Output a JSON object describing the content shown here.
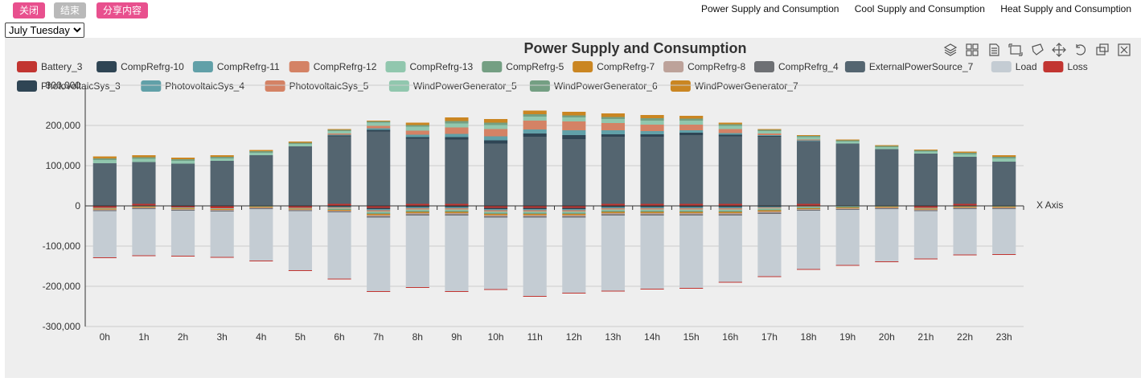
{
  "header": {
    "buttons": [
      {
        "label": "关闭"
      },
      {
        "label": "结束"
      },
      {
        "label": "分享内容"
      }
    ],
    "tabs": [
      "Power Supply and Consumption",
      "Cool Supply and Consumption",
      "Heat Supply and Consumption"
    ]
  },
  "selector": {
    "selected": "July Tuesday"
  },
  "toolbox": [
    "stack-icon",
    "grid-icon",
    "document-icon",
    "box-select-icon",
    "lasso-icon",
    "zoom-icon",
    "restore-icon",
    "save-image-icon",
    "clear-icon"
  ],
  "chart_data": {
    "type": "bar",
    "title": "Power Supply and Consumption",
    "xlabel": "X Axis",
    "ylabel": "",
    "ylim": [
      -300000,
      300000
    ],
    "yticks": [
      -300000,
      -200000,
      -100000,
      0,
      100000,
      200000,
      300000
    ],
    "ytick_labels": [
      "-300,000",
      "-200,000",
      "-100,000",
      "0",
      "100,000",
      "200,000",
      "300,000"
    ],
    "categories": [
      "0h",
      "1h",
      "2h",
      "3h",
      "4h",
      "5h",
      "6h",
      "7h",
      "8h",
      "9h",
      "10h",
      "11h",
      "12h",
      "13h",
      "14h",
      "15h",
      "16h",
      "17h",
      "18h",
      "19h",
      "20h",
      "21h",
      "22h",
      "23h"
    ],
    "legend_position": "top",
    "series": [
      {
        "name": "Battery_3",
        "color": "#c23531",
        "values": [
          -5000,
          5000,
          -4000,
          -6000,
          0,
          -5000,
          5000,
          -5000,
          5000,
          5000,
          -5000,
          -5000,
          -5000,
          5000,
          5000,
          5000,
          5000,
          0,
          5000,
          0,
          0,
          -5000,
          5000,
          0
        ]
      },
      {
        "name": "CompRefrg-10",
        "color": "#2f4554",
        "values": [
          0,
          0,
          0,
          0,
          0,
          0,
          -2000,
          -3000,
          -3000,
          -3000,
          -3000,
          -3000,
          -3000,
          -3000,
          -3000,
          -3000,
          -3000,
          -2000,
          0,
          0,
          0,
          0,
          0,
          0
        ]
      },
      {
        "name": "CompRefrg-11",
        "color": "#61a0a8",
        "values": [
          0,
          0,
          0,
          0,
          0,
          0,
          -2000,
          -3000,
          -3000,
          -3000,
          -3000,
          -3000,
          -3000,
          -3000,
          -3000,
          -3000,
          -3000,
          -2000,
          0,
          0,
          0,
          0,
          0,
          0
        ]
      },
      {
        "name": "CompRefrg-12",
        "color": "#d48265",
        "values": [
          0,
          0,
          0,
          0,
          0,
          0,
          -2000,
          -3000,
          -3000,
          -3000,
          -3000,
          -3000,
          -3000,
          -3000,
          -3000,
          -3000,
          -3000,
          -2000,
          -2000,
          0,
          0,
          0,
          0,
          0
        ]
      },
      {
        "name": "CompRefrg-13",
        "color": "#91c7ae",
        "values": [
          -2000,
          -2000,
          -2000,
          -2000,
          -2000,
          -2000,
          -2000,
          -3000,
          -3000,
          -3000,
          -3000,
          -3000,
          -3000,
          -3000,
          -3000,
          -3000,
          -3000,
          -3000,
          -2000,
          -2000,
          -2000,
          -2000,
          -2000,
          -2000
        ]
      },
      {
        "name": "CompRefrg-5",
        "color": "#749f83",
        "values": [
          0,
          0,
          0,
          0,
          0,
          0,
          -2000,
          -3000,
          -3000,
          -3000,
          -3000,
          -3000,
          -3000,
          -3000,
          -3000,
          -3000,
          -3000,
          -2000,
          -2000,
          -2000,
          0,
          0,
          0,
          0
        ]
      },
      {
        "name": "CompRefrg-7",
        "color": "#ca8622",
        "values": [
          -2000,
          -2000,
          -2000,
          -2000,
          -2000,
          -2000,
          -2000,
          -3000,
          -3000,
          -3000,
          -3000,
          -3000,
          -3000,
          -3000,
          -3000,
          -3000,
          -3000,
          -3000,
          -2000,
          -2000,
          -2000,
          -2000,
          -2000,
          -2000
        ]
      },
      {
        "name": "CompRefrg-8",
        "color": "#bda29a",
        "values": [
          -2000,
          -2000,
          -2000,
          -2000,
          -2000,
          -2000,
          -2000,
          -3000,
          -3000,
          -3000,
          -3000,
          -3000,
          -3000,
          -3000,
          -3000,
          -3000,
          -3000,
          -3000,
          -2000,
          -2000,
          -2000,
          -2000,
          -2000,
          -2000
        ]
      },
      {
        "name": "CompRefrg_4",
        "color": "#6e7074",
        "values": [
          -2000,
          -2000,
          -2000,
          -2000,
          -2000,
          -2000,
          -2000,
          -3000,
          -3000,
          -3000,
          -3000,
          -3000,
          -3000,
          -3000,
          -3000,
          -3000,
          -3000,
          -3000,
          -2000,
          -2000,
          -2000,
          -2000,
          -2000,
          -2000
        ]
      },
      {
        "name": "ExternalPowerSource_7",
        "color": "#546570",
        "values": [
          106000,
          104000,
          105000,
          112000,
          126000,
          148000,
          168000,
          185000,
          162000,
          160000,
          155000,
          172000,
          166000,
          167000,
          167000,
          171000,
          168000,
          172000,
          156000,
          155000,
          141000,
          130000,
          117000,
          110000
        ]
      },
      {
        "name": "Load",
        "color": "#c4ccd3",
        "values": [
          -115000,
          -115000,
          -112000,
          -113000,
          -128000,
          -147000,
          -165000,
          -183000,
          -178000,
          -188000,
          -178000,
          -195000,
          -187000,
          -187000,
          -182000,
          -180000,
          -165000,
          -155000,
          -145000,
          -137000,
          -130000,
          -118000,
          -113000,
          -112000
        ]
      },
      {
        "name": "Loss",
        "color": "#c23531",
        "values": [
          -2000,
          -2000,
          -2000,
          -2000,
          -2000,
          -2000,
          -2000,
          -2000,
          -2000,
          -2000,
          -2000,
          -2000,
          -2000,
          -2000,
          -2000,
          -2000,
          -2000,
          -2000,
          -2000,
          -2000,
          -2000,
          -2000,
          -2000,
          -2000
        ]
      },
      {
        "name": "PhotovoltaicSys_3",
        "color": "#2f4554",
        "values": [
          0,
          0,
          0,
          0,
          0,
          0,
          2000,
          4000,
          4000,
          6000,
          8000,
          8000,
          10000,
          6000,
          6000,
          6000,
          4000,
          2000,
          0,
          0,
          0,
          0,
          0,
          0
        ]
      },
      {
        "name": "PhotovoltaicSys_4",
        "color": "#61a0a8",
        "values": [
          0,
          0,
          0,
          0,
          0,
          0,
          2000,
          4000,
          6000,
          8000,
          10000,
          10000,
          12000,
          10000,
          8000,
          6000,
          4000,
          2000,
          2000,
          0,
          0,
          0,
          0,
          0
        ]
      },
      {
        "name": "PhotovoltaicSys_5",
        "color": "#d48265",
        "values": [
          0,
          0,
          0,
          0,
          0,
          0,
          3000,
          6000,
          10000,
          16000,
          18000,
          22000,
          22000,
          18000,
          16000,
          14000,
          10000,
          4000,
          2000,
          0,
          0,
          0,
          0,
          0
        ]
      },
      {
        "name": "WindPowerGenerator_5",
        "color": "#91c7ae",
        "values": [
          8000,
          8000,
          7000,
          6000,
          6000,
          6000,
          6000,
          8000,
          10000,
          10000,
          10000,
          10000,
          10000,
          10000,
          10000,
          10000,
          8000,
          6000,
          6000,
          5000,
          5000,
          5000,
          6000,
          8000
        ]
      },
      {
        "name": "WindPowerGenerator_6",
        "color": "#749f83",
        "values": [
          4000,
          4000,
          4000,
          4000,
          4000,
          3000,
          3000,
          3000,
          4000,
          6000,
          6000,
          6000,
          5000,
          5000,
          6000,
          5000,
          4000,
          3000,
          3000,
          3000,
          3000,
          3000,
          4000,
          4000
        ]
      },
      {
        "name": "WindPowerGenerator_7",
        "color": "#ca8622",
        "values": [
          5000,
          5000,
          4000,
          4000,
          3000,
          3000,
          2000,
          2000,
          6000,
          9000,
          9000,
          9000,
          9000,
          9000,
          8000,
          7000,
          4000,
          2000,
          2000,
          2000,
          2000,
          2000,
          3000,
          4000
        ]
      }
    ]
  }
}
